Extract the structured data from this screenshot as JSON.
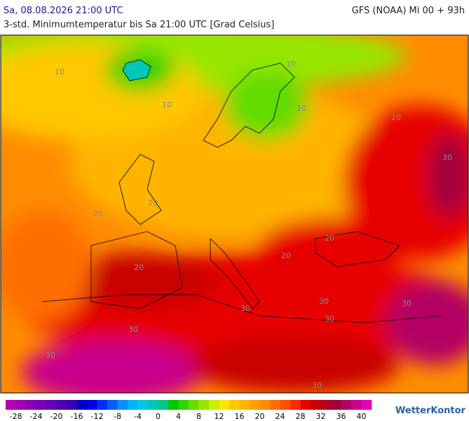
{
  "header": {
    "date": "Sa, 08.08.2026 21:00 UTC",
    "model": "GFS (NOAA) Mi 00 + 93h",
    "subtitle": "3-std. Minimumtemperatur bis Sa 21:00 UTC [Grad Celsius]"
  },
  "map": {
    "contour_labels": [
      "10",
      "10",
      "10",
      "10",
      "20",
      "20",
      "20",
      "20",
      "20",
      "20",
      "30",
      "30",
      "30",
      "30",
      "30",
      "30",
      "30",
      "30"
    ]
  },
  "legend": {
    "ticks": [
      -28,
      -24,
      -20,
      -16,
      -12,
      -8,
      -4,
      0,
      4,
      8,
      12,
      16,
      20,
      24,
      28,
      32,
      36,
      40
    ],
    "colors": [
      "#b400b4",
      "#a000b4",
      "#8c00b4",
      "#7800b4",
      "#6400b4",
      "#5000b4",
      "#3c00b4",
      "#0000c8",
      "#0000e6",
      "#0030ff",
      "#0060ff",
      "#0090ff",
      "#00b4ff",
      "#00c8e6",
      "#00c8b4",
      "#00c88c",
      "#00c800",
      "#32d200",
      "#64dc00",
      "#96e600",
      "#c8f000",
      "#ffe600",
      "#ffc800",
      "#ffb400",
      "#ffa000",
      "#ff8c00",
      "#ff6e00",
      "#ff5000",
      "#ff2800",
      "#e60000",
      "#c80000",
      "#b4001e",
      "#a0003c",
      "#b40064",
      "#c8008c",
      "#e600b4"
    ],
    "brand": "WetterKontor"
  }
}
